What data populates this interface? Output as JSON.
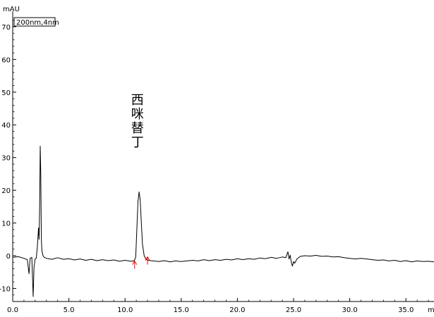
{
  "chart_data": {
    "type": "line",
    "title": "",
    "xlabel": "",
    "ylabel": "mAU",
    "xunit_label": "min",
    "legend_box": "200nm,4nm",
    "xlim": [
      0,
      37.5
    ],
    "ylim": [
      -14,
      73
    ],
    "xticks": [
      0,
      5,
      10,
      15,
      20,
      25,
      30,
      35
    ],
    "xtick_labels": [
      "0.0",
      "5.0",
      "10.0",
      "15.0",
      "20.0",
      "25.0",
      "30.0",
      "35.0"
    ],
    "yticks": [
      70,
      60,
      50,
      40,
      30,
      20,
      10,
      0,
      -10
    ],
    "ytick_labels": [
      "70",
      "60",
      "50",
      "40",
      "30",
      "20",
      "10",
      "0",
      "-10"
    ],
    "grid": false,
    "line_color": "#000000",
    "marker_color": "#ff0000",
    "annotation": {
      "text": [
        "西",
        "咪",
        "替",
        "丁"
      ],
      "x": 11.1,
      "y": 35
    },
    "markers": [
      {
        "x": 10.85,
        "y": -2.5
      },
      {
        "x": 12.0,
        "y": -1.2
      }
    ],
    "series": [
      {
        "values": [
          [
            0.0,
            -0.5
          ],
          [
            0.5,
            -0.3
          ],
          [
            1.0,
            -0.8
          ],
          [
            1.3,
            -1.2
          ],
          [
            1.45,
            -5.5
          ],
          [
            1.55,
            -0.8
          ],
          [
            1.7,
            -0.5
          ],
          [
            1.82,
            -12.5
          ],
          [
            1.9,
            -3.5
          ],
          [
            2.0,
            -1.0
          ],
          [
            2.1,
            -0.8
          ],
          [
            2.2,
            3.0
          ],
          [
            2.3,
            8.5
          ],
          [
            2.35,
            5.0
          ],
          [
            2.4,
            15.0
          ],
          [
            2.45,
            33.5
          ],
          [
            2.5,
            25.0
          ],
          [
            2.55,
            5.0
          ],
          [
            2.6,
            1.5
          ],
          [
            2.7,
            0.0
          ],
          [
            2.8,
            -0.5
          ],
          [
            3.0,
            -0.8
          ],
          [
            3.5,
            -1.1
          ],
          [
            4.0,
            -0.6
          ],
          [
            4.5,
            -1.1
          ],
          [
            5.0,
            -0.9
          ],
          [
            5.5,
            -1.3
          ],
          [
            6.0,
            -1.0
          ],
          [
            6.5,
            -1.4
          ],
          [
            7.0,
            -1.1
          ],
          [
            7.5,
            -1.5
          ],
          [
            8.0,
            -1.2
          ],
          [
            8.5,
            -1.5
          ],
          [
            9.0,
            -1.3
          ],
          [
            9.5,
            -1.7
          ],
          [
            10.0,
            -1.4
          ],
          [
            10.5,
            -1.7
          ],
          [
            10.8,
            -1.6
          ],
          [
            10.95,
            -0.5
          ],
          [
            11.05,
            8.0
          ],
          [
            11.15,
            16.5
          ],
          [
            11.25,
            19.5
          ],
          [
            11.35,
            17.0
          ],
          [
            11.45,
            10.0
          ],
          [
            11.55,
            3.5
          ],
          [
            11.7,
            0.0
          ],
          [
            11.85,
            -1.0
          ],
          [
            12.0,
            -1.4
          ],
          [
            12.5,
            -1.6
          ],
          [
            13.0,
            -1.8
          ],
          [
            13.5,
            -1.5
          ],
          [
            14.0,
            -1.9
          ],
          [
            14.5,
            -1.6
          ],
          [
            15.0,
            -1.8
          ],
          [
            15.5,
            -1.6
          ],
          [
            16.0,
            -1.4
          ],
          [
            16.5,
            -1.6
          ],
          [
            17.0,
            -1.2
          ],
          [
            17.5,
            -1.5
          ],
          [
            18.0,
            -1.2
          ],
          [
            18.5,
            -1.4
          ],
          [
            19.0,
            -1.1
          ],
          [
            19.5,
            -1.3
          ],
          [
            20.0,
            -0.9
          ],
          [
            20.5,
            -1.2
          ],
          [
            21.0,
            -0.9
          ],
          [
            21.5,
            -1.1
          ],
          [
            22.0,
            -0.7
          ],
          [
            22.5,
            -0.9
          ],
          [
            23.0,
            -0.5
          ],
          [
            23.5,
            -0.8
          ],
          [
            24.0,
            -0.4
          ],
          [
            24.3,
            -0.6
          ],
          [
            24.5,
            1.2
          ],
          [
            24.6,
            -1.0
          ],
          [
            24.7,
            0.2
          ],
          [
            24.8,
            -2.0
          ],
          [
            24.9,
            -3.2
          ],
          [
            25.0,
            -1.8
          ],
          [
            25.1,
            -2.3
          ],
          [
            25.3,
            -1.0
          ],
          [
            25.6,
            -0.2
          ],
          [
            26.0,
            0.0
          ],
          [
            26.5,
            -0.1
          ],
          [
            27.0,
            0.1
          ],
          [
            27.5,
            -0.2
          ],
          [
            28.0,
            -0.1
          ],
          [
            28.5,
            -0.4
          ],
          [
            29.0,
            -0.3
          ],
          [
            29.5,
            -0.6
          ],
          [
            30.0,
            -0.8
          ],
          [
            30.5,
            -1.0
          ],
          [
            31.0,
            -0.8
          ],
          [
            31.5,
            -1.0
          ],
          [
            32.0,
            -1.2
          ],
          [
            32.5,
            -1.4
          ],
          [
            33.0,
            -1.3
          ],
          [
            33.5,
            -1.6
          ],
          [
            34.0,
            -1.4
          ],
          [
            34.5,
            -1.8
          ],
          [
            35.0,
            -1.5
          ],
          [
            35.5,
            -1.9
          ],
          [
            36.0,
            -1.6
          ],
          [
            36.5,
            -1.8
          ],
          [
            37.0,
            -1.7
          ],
          [
            37.5,
            -1.9
          ]
        ]
      }
    ]
  }
}
